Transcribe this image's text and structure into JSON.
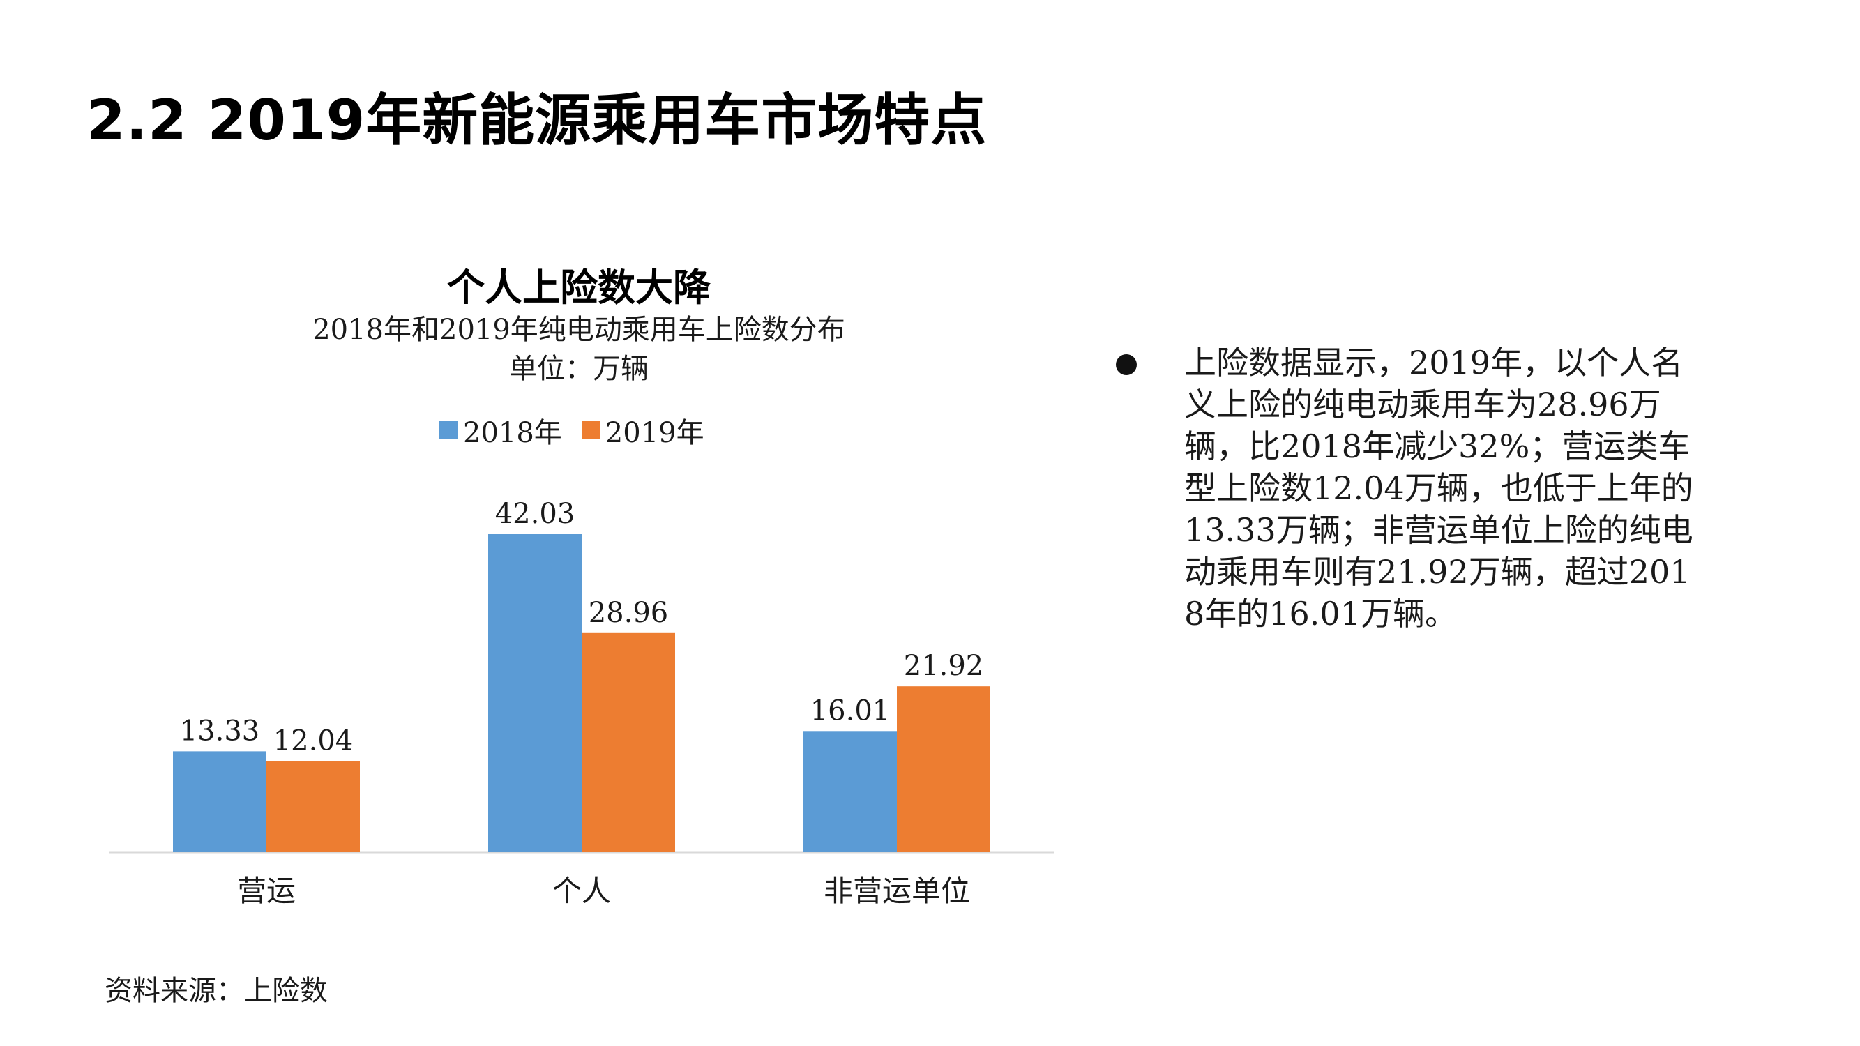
{
  "page": {
    "title": "2.2 2019年新能源乘用车市场特点",
    "bullet_text": "上险数据显示，2019年，以个人名义上险的纯电动乘用车为28.96万辆，比2018年减少32%；营运类车型上险数12.04万辆，也低于上年的13.33万辆；非营运单位上险的纯电动乘用车则有21.92万辆，超过2018年的16.01万辆。",
    "source": "资料来源：上险数"
  },
  "colors": {
    "series_2018": "#5B9BD5",
    "series_2019": "#ED7D31",
    "axis": "#D9D9D9"
  },
  "chart_data": {
    "type": "bar",
    "title": "个人上险数大降",
    "subtitle": "2018年和2019年纯电动乘用车上险数分布",
    "unit": "单位：万辆",
    "categories": [
      "营运",
      "个人",
      "非营运单位"
    ],
    "series": [
      {
        "name": "2018年",
        "values": [
          13.33,
          42.03,
          16.01
        ],
        "labels": [
          "13.33",
          "42.03",
          "16.01"
        ]
      },
      {
        "name": "2019年",
        "values": [
          12.04,
          28.96,
          21.92
        ],
        "labels": [
          "12.04",
          "28.96",
          "21.92"
        ]
      }
    ],
    "ylim": [
      0,
      42.03
    ],
    "grid": false,
    "legend_position": "top"
  }
}
